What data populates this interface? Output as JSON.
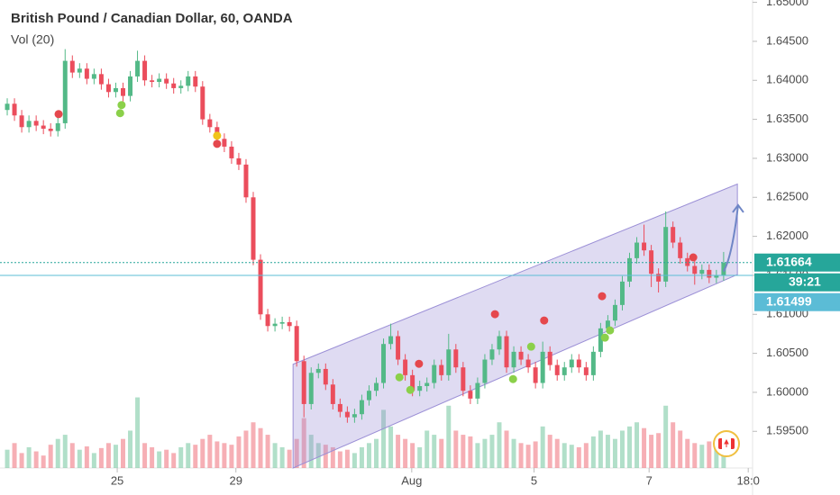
{
  "chart_data": {
    "type": "candlestick",
    "title": "British Pound / Canadian Dollar, 60, OANDA",
    "volume_label": "Vol (20)",
    "up_color": "#53b987",
    "down_color": "#eb4d5c",
    "xlim": [
      -1,
      103
    ],
    "xticks": [
      {
        "value": 15.2,
        "label": "25"
      },
      {
        "value": 31.6,
        "label": "29"
      },
      {
        "value": 55.9,
        "label": "Aug"
      },
      {
        "value": 72.8,
        "label": "5"
      },
      {
        "value": 88.7,
        "label": "7"
      },
      {
        "value": 102.4,
        "label": "18:0"
      }
    ],
    "ylim": [
      1.5903,
      1.6503
    ],
    "yticks": [
      {
        "value": 1.65,
        "label": "1.65000"
      },
      {
        "value": 1.645,
        "label": "1.64500"
      },
      {
        "value": 1.64,
        "label": "1.64000"
      },
      {
        "value": 1.635,
        "label": "1.63500"
      },
      {
        "value": 1.63,
        "label": "1.63000"
      },
      {
        "value": 1.625,
        "label": "1.62500"
      },
      {
        "value": 1.62,
        "label": "1.62000"
      },
      {
        "value": 1.615,
        "label": "1.61500"
      },
      {
        "value": 1.61,
        "label": "1.61000"
      },
      {
        "value": 1.605,
        "label": "1.60500"
      },
      {
        "value": 1.6,
        "label": "1.60000"
      },
      {
        "value": 1.595,
        "label": "1.59500"
      }
    ],
    "open": [
      1.6362,
      1.637,
      1.6355,
      1.634,
      1.6348,
      1.6342,
      1.6338,
      1.6335,
      1.6345,
      1.6425,
      1.641,
      1.6415,
      1.6402,
      1.6408,
      1.6395,
      1.6385,
      1.639,
      1.638,
      1.6405,
      1.6425,
      1.64,
      1.6398,
      1.6402,
      1.6396,
      1.639,
      1.6393,
      1.6405,
      1.6392,
      1.635,
      1.634,
      1.6325,
      1.6315,
      1.63,
      1.6292,
      1.625,
      1.617,
      1.61,
      1.6085,
      1.6088,
      1.609,
      1.6085,
      1.604,
      1.5985,
      1.6025,
      1.603,
      1.601,
      1.5985,
      1.5975,
      1.5968,
      1.5972,
      1.599,
      1.6002,
      1.6012,
      1.6062,
      1.6072,
      1.6042,
      1.6022,
      1.6002,
      1.6008,
      1.6012,
      1.6035,
      1.6022,
      1.6055,
      1.6032,
      1.6002,
      1.5992,
      1.6012,
      1.6042,
      1.6055,
      1.6072,
      1.6032,
      1.6052,
      1.6042,
      1.6032,
      1.6012,
      1.6052,
      1.6035,
      1.6022,
      1.6032,
      1.6042,
      1.6032,
      1.6022,
      1.6052,
      1.6082,
      1.6092,
      1.6112,
      1.6142,
      1.6172,
      1.6192,
      1.6182,
      1.6152,
      1.6142,
      1.6212,
      1.6192,
      1.6172,
      1.6162,
      1.6152,
      1.6157,
      1.6147,
      1.615
    ],
    "high": [
      1.6377,
      1.6377,
      1.6362,
      1.6355,
      1.6355,
      1.6349,
      1.6345,
      1.6352,
      1.644,
      1.6432,
      1.6422,
      1.6422,
      1.6415,
      1.6415,
      1.6402,
      1.6397,
      1.6397,
      1.6412,
      1.6438,
      1.6432,
      1.6407,
      1.6409,
      1.6409,
      1.6403,
      1.64,
      1.6412,
      1.6412,
      1.6399,
      1.6357,
      1.6347,
      1.6332,
      1.6322,
      1.6307,
      1.6299,
      1.6257,
      1.6177,
      1.6107,
      1.6095,
      1.6097,
      1.6097,
      1.6092,
      1.6047,
      1.6032,
      1.6037,
      1.6037,
      1.6017,
      1.5992,
      1.5982,
      1.5979,
      1.5997,
      1.6009,
      1.6019,
      1.6069,
      1.6088,
      1.6079,
      1.6049,
      1.6029,
      1.6015,
      1.6019,
      1.6042,
      1.6042,
      1.6075,
      1.6062,
      1.6039,
      1.6009,
      1.6019,
      1.6049,
      1.6062,
      1.6079,
      1.6079,
      1.6059,
      1.6059,
      1.6049,
      1.6039,
      1.6065,
      1.6059,
      1.6042,
      1.6039,
      1.6049,
      1.6049,
      1.6039,
      1.6059,
      1.6089,
      1.6099,
      1.6119,
      1.6149,
      1.6179,
      1.6199,
      1.6215,
      1.6189,
      1.6159,
      1.6232,
      1.6219,
      1.6199,
      1.6179,
      1.6169,
      1.6164,
      1.6164,
      1.6157,
      1.618
    ],
    "low": [
      1.6355,
      1.6348,
      1.6333,
      1.6333,
      1.6335,
      1.6331,
      1.6328,
      1.6328,
      1.6338,
      1.6403,
      1.6403,
      1.6395,
      1.6395,
      1.6388,
      1.6378,
      1.6378,
      1.6373,
      1.6373,
      1.6398,
      1.6393,
      1.6391,
      1.6391,
      1.6389,
      1.6383,
      1.6383,
      1.6386,
      1.6385,
      1.6343,
      1.6333,
      1.6318,
      1.6308,
      1.6293,
      1.6285,
      1.6243,
      1.6163,
      1.6093,
      1.6078,
      1.6078,
      1.6081,
      1.6078,
      1.6033,
      1.5968,
      1.5978,
      1.6018,
      1.6003,
      1.5978,
      1.5968,
      1.5961,
      1.5961,
      1.5965,
      1.5983,
      1.5995,
      1.6005,
      1.6055,
      1.6035,
      1.6015,
      1.5995,
      1.5995,
      1.6001,
      1.6005,
      1.6015,
      1.6015,
      1.6025,
      1.5995,
      1.5985,
      1.5985,
      1.6005,
      1.6035,
      1.6048,
      1.6025,
      1.6025,
      1.6035,
      1.6025,
      1.6005,
      1.6005,
      1.6028,
      1.6015,
      1.6015,
      1.6025,
      1.6025,
      1.6015,
      1.6015,
      1.6045,
      1.6075,
      1.6085,
      1.6105,
      1.6135,
      1.6165,
      1.6175,
      1.6135,
      1.6128,
      1.6135,
      1.6185,
      1.6165,
      1.6155,
      1.6138,
      1.6145,
      1.614,
      1.614,
      1.6143
    ],
    "close": [
      1.637,
      1.6355,
      1.634,
      1.6348,
      1.6342,
      1.6338,
      1.6335,
      1.6345,
      1.6425,
      1.641,
      1.6415,
      1.6402,
      1.6408,
      1.6395,
      1.6385,
      1.639,
      1.638,
      1.6405,
      1.6425,
      1.64,
      1.6398,
      1.6402,
      1.6396,
      1.639,
      1.6393,
      1.6405,
      1.6392,
      1.635,
      1.634,
      1.6325,
      1.6315,
      1.63,
      1.6292,
      1.625,
      1.617,
      1.61,
      1.6085,
      1.6088,
      1.609,
      1.6085,
      1.604,
      1.5985,
      1.6025,
      1.603,
      1.601,
      1.5985,
      1.5975,
      1.5968,
      1.5972,
      1.599,
      1.6002,
      1.6012,
      1.6062,
      1.6072,
      1.6042,
      1.6022,
      1.6002,
      1.6008,
      1.6012,
      1.6035,
      1.6022,
      1.6055,
      1.6032,
      1.6002,
      1.5992,
      1.6012,
      1.6042,
      1.6055,
      1.6072,
      1.6032,
      1.6052,
      1.6042,
      1.6032,
      1.6012,
      1.6052,
      1.6035,
      1.6022,
      1.6032,
      1.6042,
      1.6032,
      1.6022,
      1.6052,
      1.6082,
      1.6092,
      1.6112,
      1.6142,
      1.6172,
      1.6192,
      1.6182,
      1.6152,
      1.6142,
      1.6212,
      1.6192,
      1.6172,
      1.6162,
      1.6152,
      1.6157,
      1.6147,
      1.615,
      1.6166
    ],
    "volume": [
      22,
      30,
      18,
      25,
      20,
      15,
      28,
      35,
      40,
      30,
      22,
      26,
      18,
      24,
      30,
      28,
      35,
      45,
      85,
      30,
      25,
      20,
      22,
      18,
      25,
      30,
      28,
      35,
      40,
      32,
      30,
      28,
      38,
      45,
      55,
      48,
      40,
      30,
      25,
      22,
      35,
      60,
      40,
      30,
      28,
      25,
      20,
      22,
      18,
      25,
      30,
      35,
      70,
      50,
      40,
      35,
      30,
      25,
      45,
      40,
      35,
      75,
      45,
      40,
      38,
      30,
      35,
      40,
      55,
      45,
      35,
      30,
      28,
      32,
      50,
      40,
      35,
      30,
      28,
      25,
      30,
      38,
      45,
      40,
      35,
      45,
      50,
      55,
      48,
      40,
      42,
      75,
      55,
      45,
      35,
      30,
      28,
      32,
      25,
      30
    ],
    "volume_lim": [
      0,
      130
    ],
    "channel": {
      "x": [
        39.5,
        100.9
      ],
      "lower": [
        1.5903,
        1.6151
      ],
      "upper": [
        1.6036,
        1.6267
      ],
      "color": "#9b8fd6"
    },
    "arrow": {
      "x": [
        99,
        100.2,
        101
      ],
      "y": [
        1.6155,
        1.6175,
        1.624
      ],
      "color": "#6f86c6"
    },
    "signals": {
      "x": [
        7.1,
        15.8,
        15.6,
        29.0,
        29.0,
        54.2,
        55.7,
        56.9,
        67.4,
        69.9,
        72.4,
        74.2,
        82.2,
        82.6,
        83.3,
        94.8
      ],
      "y": [
        1.63567,
        1.63683,
        1.63579,
        1.6329,
        1.63186,
        1.60193,
        1.60031,
        1.60366,
        1.61002,
        1.6017,
        1.60586,
        1.60921,
        1.61233,
        1.60701,
        1.60794,
        1.6173
      ],
      "colors": [
        "#e5484d",
        "#8bd04a",
        "#8bd04a",
        "#f0c419",
        "#e5484d",
        "#8bd04a",
        "#8bd04a",
        "#e5484d",
        "#e5484d",
        "#8bd04a",
        "#8bd04a",
        "#e5484d",
        "#e5484d",
        "#8bd04a",
        "#8bd04a",
        "#e5484d"
      ]
    },
    "price_lines": [
      {
        "value": 1.61664,
        "label": "1.61664",
        "color": "#26a69a",
        "style": "dotted"
      },
      {
        "value": 1.61499,
        "label": "1.61499",
        "color": "#5bbcd6",
        "style": "solid"
      }
    ],
    "countdown": "39:21"
  }
}
